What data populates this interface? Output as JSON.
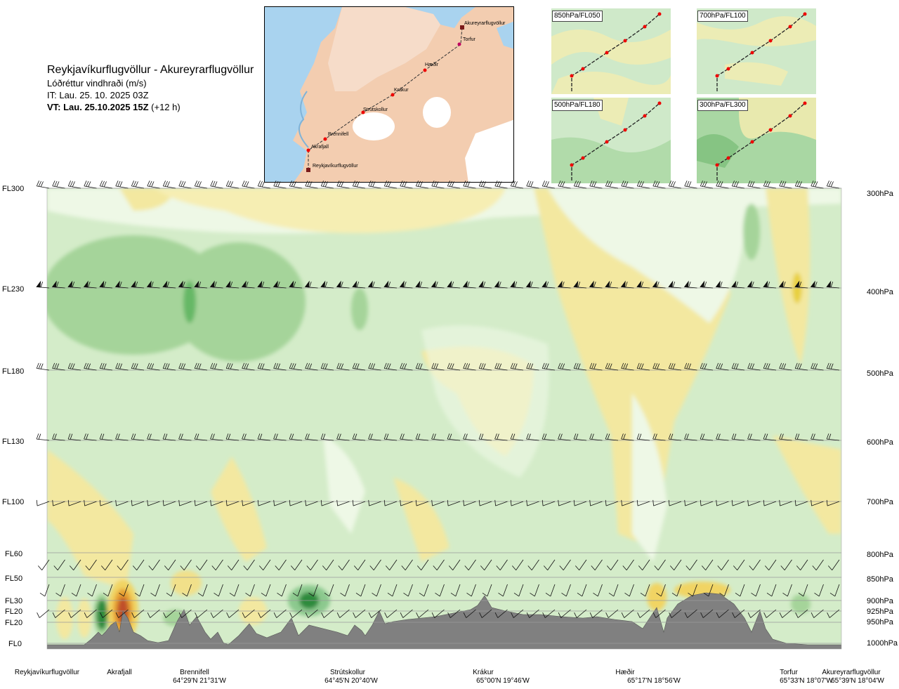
{
  "header": {
    "route": "Reykjavíkurflugvöllur - Akureyrarflugvöllur",
    "parameter": "Lóðréttur vindhraði (m/s)",
    "initial_time": "IT: Lau. 25. 10. 2025 03Z",
    "valid_time_bold": "VT: Lau. 25.10.2025 15Z",
    "valid_time_offset": "(+12 h)"
  },
  "map": {
    "waypoints": [
      "Akureyrarflugvöllur",
      "Torfur",
      "Hæðir",
      "Krákur",
      "Strútskollur",
      "Brennifell",
      "Akrafjall",
      "Reykjavíkurflugvöllur"
    ],
    "colors": {
      "sea": "#a8d3f0",
      "land": "#f2c9a8",
      "glacier": "#ffffff",
      "route": "#e00000"
    }
  },
  "insets": [
    {
      "label": "850hPa/FL050"
    },
    {
      "label": "700hPa/FL100"
    },
    {
      "label": "500hPa/FL180"
    },
    {
      "label": "300hPa/FL300"
    }
  ],
  "chart_data": {
    "type": "heatmap",
    "title": "",
    "variable": "Lóðréttur vindhraði (m/s)",
    "y_left_labels": [
      "FL300",
      "FL230",
      "FL180",
      "FL130",
      "FL100",
      "FL60",
      "FL50",
      "FL30",
      "FL20",
      "FL20",
      "FL0"
    ],
    "y_right_labels": [
      "300hPa",
      "400hPa",
      "500hPa",
      "600hPa",
      "700hPa",
      "800hPa",
      "850hPa",
      "900hPa",
      "925hPa",
      "950hPa",
      "1000hPa"
    ],
    "levels_hpa": [
      300,
      400,
      500,
      600,
      700,
      800,
      850,
      900,
      925,
      950,
      1000
    ],
    "x_waypoints": [
      {
        "name": "Reykjavíkurflugvöllur",
        "coord": ""
      },
      {
        "name": "Akrafjall",
        "coord": ""
      },
      {
        "name": "Brennifell",
        "coord": "64°29'N 21°31'W"
      },
      {
        "name": "Strútskollur",
        "coord": "64°45'N 20°40'W"
      },
      {
        "name": "Krákur",
        "coord": "65°00'N 19°46'W"
      },
      {
        "name": "Hæðir",
        "coord": "65°17'N 18°56'W"
      },
      {
        "name": "Torfur",
        "coord": "65°33'N 18°07'W"
      },
      {
        "name": "Akureyrarflugvöllur",
        "coord": "65°39'N 18°04'W"
      }
    ],
    "colors": {
      "downdraft_strong": "#2e8b3e",
      "downdraft_mod": "#8cc98e",
      "downdraft_weak": "#c9e8c4",
      "neutral": "#eef8e6",
      "updraft_weak": "#fbf5c4",
      "updraft_mod": "#f1e593",
      "updraft_strong": "#e8b020",
      "updraft_max": "#c0502a",
      "terrain": "#808080"
    }
  }
}
